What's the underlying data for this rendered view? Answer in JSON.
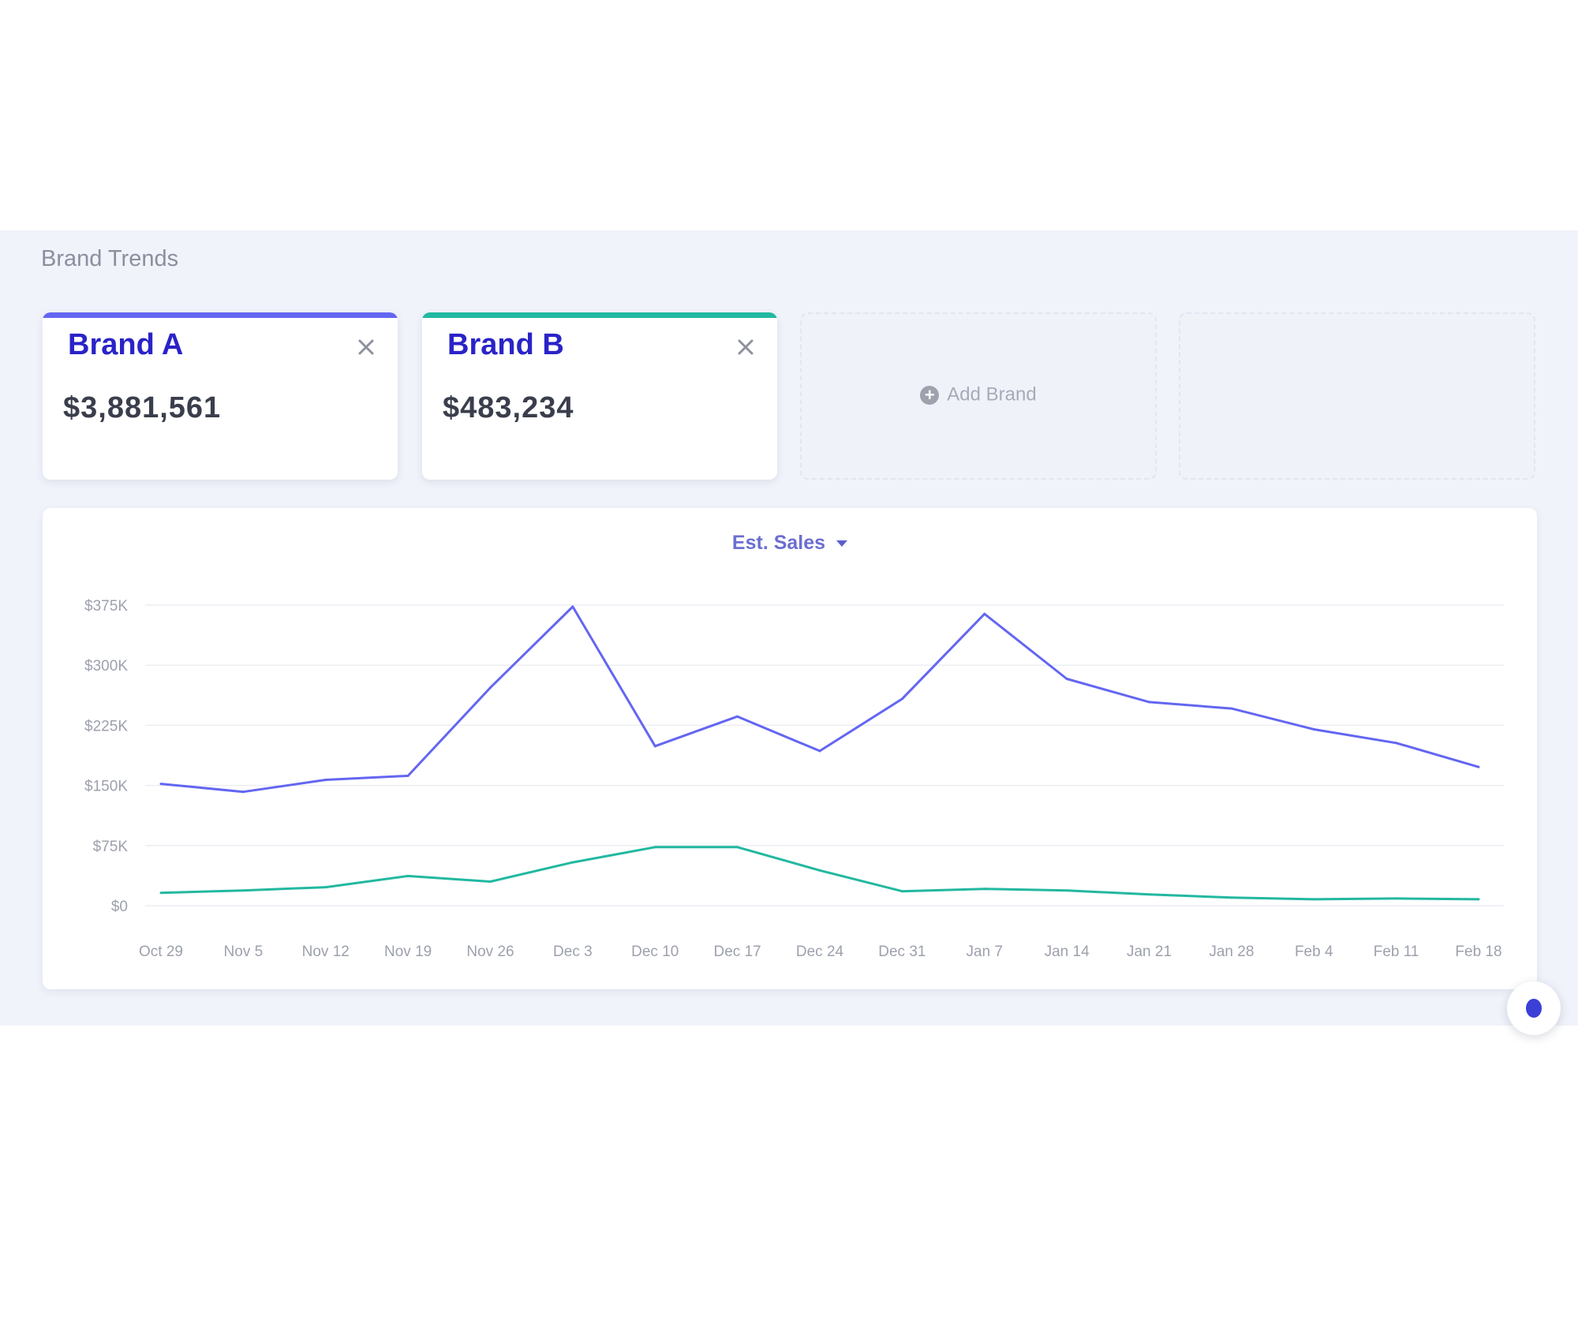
{
  "section": {
    "title": "Brand Trends"
  },
  "brands": [
    {
      "name": "Brand A",
      "amount": "$3,881,561",
      "color": "#6366f1"
    },
    {
      "name": "Brand B",
      "amount": "$483,234",
      "color": "#22b8a0"
    }
  ],
  "add_brand": {
    "label": "Add Brand",
    "icon": "plus-circle-icon"
  },
  "close_icon": "close-icon",
  "metric_selector": {
    "label": "Est. Sales",
    "icon": "caret-down-icon"
  },
  "help_button": {
    "icon": "help-icon"
  },
  "chart_data": {
    "type": "line",
    "categories": [
      "Oct 29",
      "Nov 5",
      "Nov 12",
      "Nov 19",
      "Nov 26",
      "Dec 3",
      "Dec 10",
      "Dec 17",
      "Dec 24",
      "Dec 31",
      "Jan 7",
      "Jan 14",
      "Jan 21",
      "Jan 28",
      "Feb 4",
      "Feb 11",
      "Feb 18"
    ],
    "y_ticks": [
      "$0",
      "$75K",
      "$150K",
      "$225K",
      "$300K",
      "$375K"
    ],
    "ylim": [
      0,
      375000
    ],
    "grid": true,
    "series": [
      {
        "name": "Brand A",
        "color": "#6366f1",
        "values": [
          152000,
          142000,
          157000,
          162000,
          272000,
          373000,
          199000,
          236000,
          193000,
          258000,
          364000,
          283000,
          254000,
          246000,
          220000,
          203000,
          173000
        ]
      },
      {
        "name": "Brand B",
        "color": "#22b8a0",
        "values": [
          16000,
          19000,
          23000,
          37000,
          30000,
          54000,
          73000,
          73000,
          44000,
          18000,
          21000,
          19000,
          14000,
          10000,
          8000,
          9000,
          8000
        ]
      }
    ]
  }
}
